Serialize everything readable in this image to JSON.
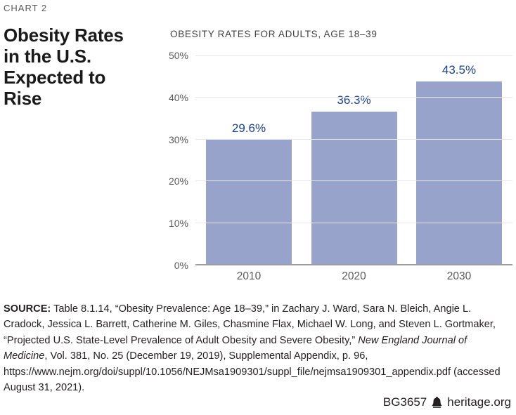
{
  "page": {
    "kicker": "CHART 2",
    "title_lines": [
      "Obesity Rates",
      "in the U.S.",
      "Expected to",
      "Rise"
    ]
  },
  "chart_data": {
    "type": "bar",
    "title": "OBESITY RATES FOR ADULTS, AGE 18–39",
    "categories": [
      "2010",
      "2020",
      "2030"
    ],
    "values": [
      29.6,
      36.3,
      43.5
    ],
    "value_labels": [
      "29.6%",
      "36.3%",
      "43.5%"
    ],
    "ylim": [
      0,
      50
    ],
    "yticks": [
      0,
      10,
      20,
      30,
      40,
      50
    ],
    "ytick_labels": [
      "0%",
      "10%",
      "20%",
      "30%",
      "40%",
      "50%"
    ],
    "grid": true,
    "legend": "none",
    "bar_color": "#97a3cb",
    "value_label_color": "#1a4190",
    "axis_line_color": "#9d9fa2",
    "gridline_color": "#e7e7e9"
  },
  "source": {
    "label": "SOURCE:",
    "segments": [
      {
        "text": " Table 8.1.14, “Obesity Prevalence: Age 18–39,” in Zachary J. Ward, Sara N. Bleich, Angie L. Cradock, Jessica L. Barrett, Catherine M. Giles, Chasmine Flax, Michael W. Long, and Steven L. Gortmaker, “Projected U.S. State-Level Prevalence of Adult Obesity and Severe Obesity,” ",
        "italic": false
      },
      {
        "text": "New England Journal of Medicine",
        "italic": true
      },
      {
        "text": ", Vol. 381, No. 25 (December 19, 2019), Supplemental Appendix, p. 96, https://www.nejm.org/doi/suppl/10.1056/NEJMsa1909301/suppl_file/nejmsa1909301_appendix.pdf (accessed August 31, 2021).",
        "italic": false
      }
    ]
  },
  "footer": {
    "doc_id": "BG3657",
    "bell_icon": "liberty-bell-icon",
    "site": "heritage.org"
  }
}
